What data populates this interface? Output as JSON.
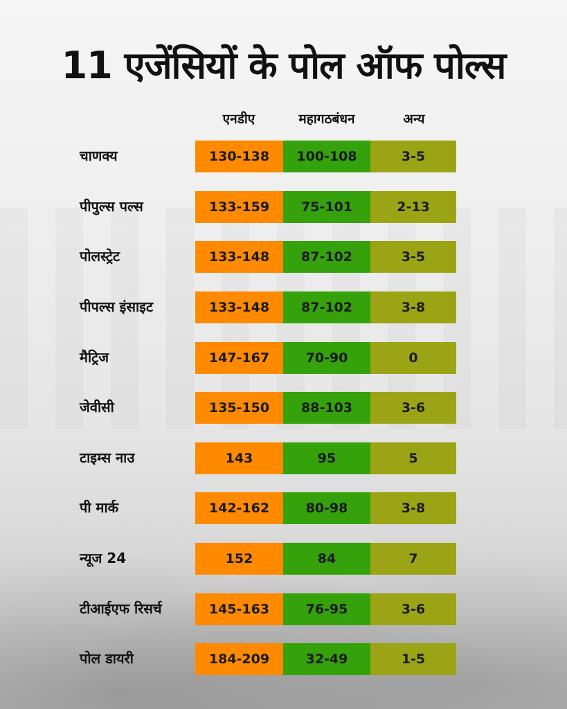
{
  "title": "11 एजेंसियों के पोल ऑफ पोल्स",
  "colors": {
    "nda": "#ff8a00",
    "mahagathbandhan": "#35a10b",
    "others": "#9ba414"
  },
  "chart_data": {
    "type": "table",
    "title": "11 एजेंसियों के पोल ऑफ पोल्स",
    "columns": [
      "एनडीए",
      "महागठबंधन",
      "अन्य"
    ],
    "rows": [
      {
        "agency": "चाणक्य",
        "values": [
          "130-138",
          "100-108",
          "3-5"
        ]
      },
      {
        "agency": "पीपुल्स पल्स",
        "values": [
          "133-159",
          "75-101",
          "2-13"
        ]
      },
      {
        "agency": "पोलस्ट्रेट",
        "values": [
          "133-148",
          "87-102",
          "3-5"
        ]
      },
      {
        "agency": "पीपल्स इंसाइट",
        "values": [
          "133-148",
          "87-102",
          "3-8"
        ]
      },
      {
        "agency": "मैट्रिज",
        "values": [
          "147-167",
          "70-90",
          "0"
        ]
      },
      {
        "agency": "जेवीसी",
        "values": [
          "135-150",
          "88-103",
          "3-6"
        ]
      },
      {
        "agency": "टाइम्स नाउ",
        "values": [
          "143",
          "95",
          "5"
        ]
      },
      {
        "agency": "पी मार्क",
        "values": [
          "142-162",
          "80-98",
          "3-8"
        ]
      },
      {
        "agency": "न्यूज 24",
        "values": [
          "152",
          "84",
          "7"
        ]
      },
      {
        "agency": "टीआईएफ रिसर्च",
        "values": [
          "145-163",
          "76-95",
          "3-6"
        ]
      },
      {
        "agency": "पोल डायरी",
        "values": [
          "184-209",
          "32-49",
          "1-5"
        ]
      }
    ]
  }
}
